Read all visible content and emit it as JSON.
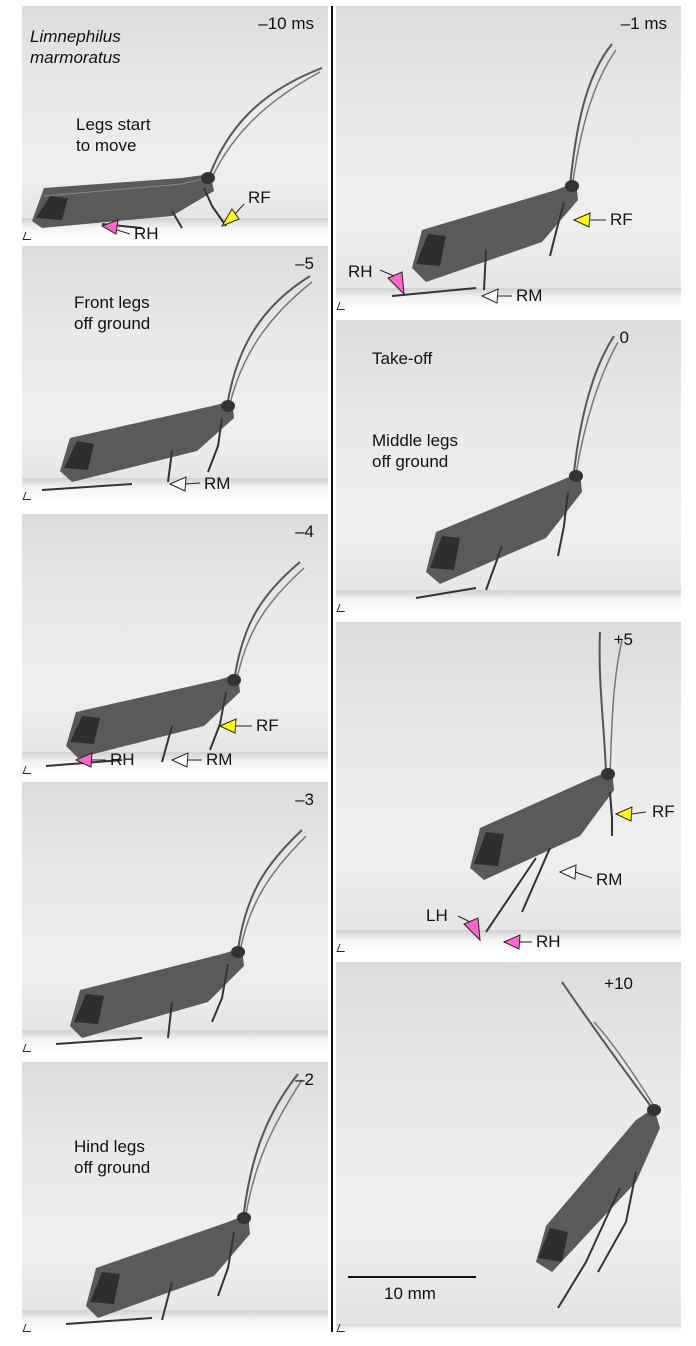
{
  "species": "Limnephilus marmoratus",
  "panels": [
    {
      "time": "–10 ms",
      "note": "Legs start to move"
    },
    {
      "time": "–5",
      "note": "Front legs off ground"
    },
    {
      "time": "–4",
      "note": ""
    },
    {
      "time": "–3",
      "note": ""
    },
    {
      "time": "–2",
      "note": "Hind legs off ground"
    },
    {
      "time": "–1 ms",
      "note": ""
    },
    {
      "time": "0",
      "note": "Take-off"
    },
    {
      "time": "+5",
      "note": ""
    },
    {
      "time": "+10",
      "note": ""
    }
  ],
  "panel0_note_lines": [
    "Legs start",
    "to move"
  ],
  "panel1_note_lines": [
    "Front legs",
    "off ground"
  ],
  "panel4_note_lines": [
    "Hind legs",
    "off ground"
  ],
  "panel6_note2_lines": [
    "Middle legs",
    "off ground"
  ],
  "species_lines": [
    "Limnephilus",
    "marmoratus"
  ],
  "leg_labels": {
    "RF": "RF",
    "RH": "RH",
    "RM": "RM",
    "LH": "LH"
  },
  "arrow_colors": {
    "front": "#ffff00",
    "hind": "#ff66cc",
    "middle": "#ffffff"
  },
  "scale_bar": {
    "label": "10 mm"
  }
}
